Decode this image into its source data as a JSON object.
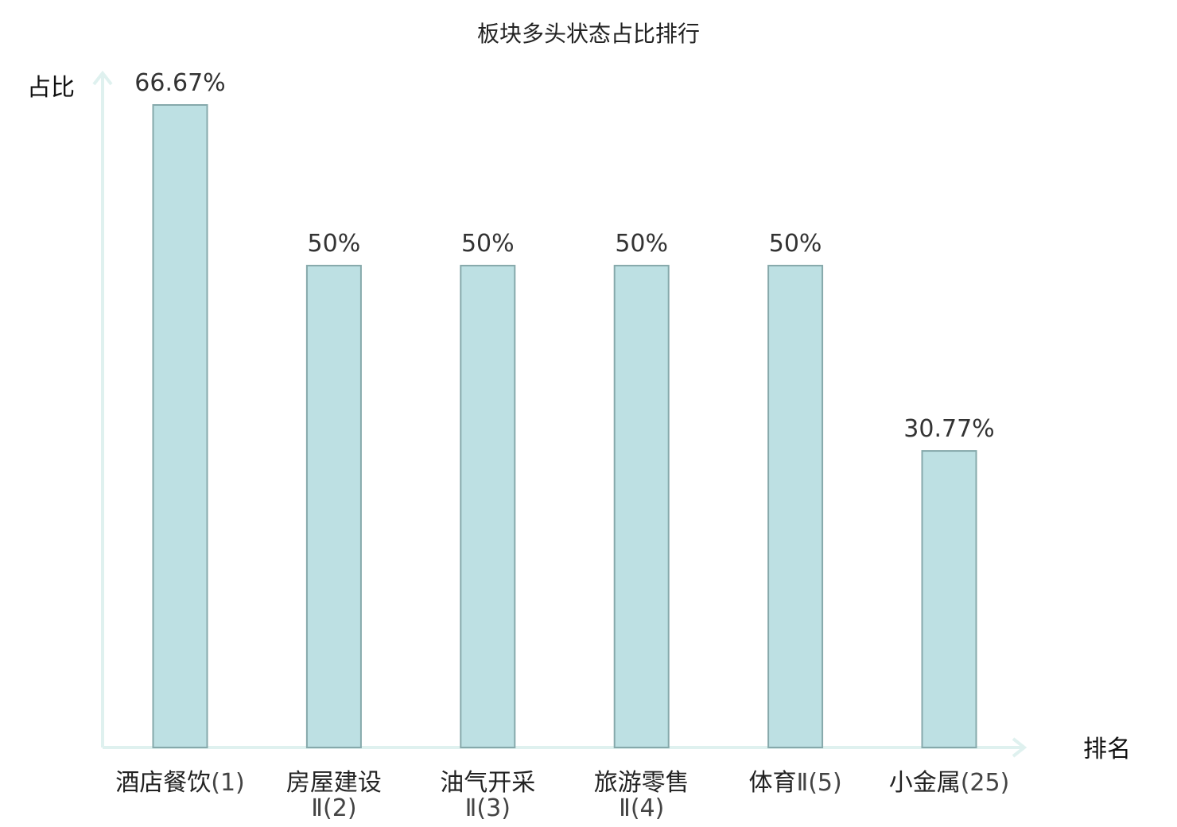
{
  "chart_data": {
    "type": "bar",
    "title": "板块多头状态占比排行",
    "ylabel": "占比",
    "xlabel": "排名",
    "ylim": [
      0,
      70
    ],
    "grid": false,
    "categories": [
      {
        "name": "酒店餐饮",
        "rank": "(1)",
        "line2": ""
      },
      {
        "name": "房屋建设",
        "rank": "",
        "line2": "Ⅱ(2)"
      },
      {
        "name": "油气开采",
        "rank": "",
        "line2": "Ⅱ(3)"
      },
      {
        "name": "旅游零售",
        "rank": "",
        "line2": "Ⅱ(4)"
      },
      {
        "name": "体育",
        "rank": "Ⅱ(5)",
        "line2": ""
      },
      {
        "name": "小金属",
        "rank": "(25)",
        "line2": ""
      }
    ],
    "values": [
      66.67,
      50,
      50,
      50,
      50,
      30.77
    ],
    "value_labels": [
      "66.67%",
      "50%",
      "50%",
      "50%",
      "50%",
      "30.77%"
    ],
    "highlight_index": 5,
    "colors": {
      "bar_fill": "#bde0e3",
      "bar_stroke": "#86a9ab",
      "axis": "#dff1ef",
      "highlight_text": "#e02020"
    }
  }
}
